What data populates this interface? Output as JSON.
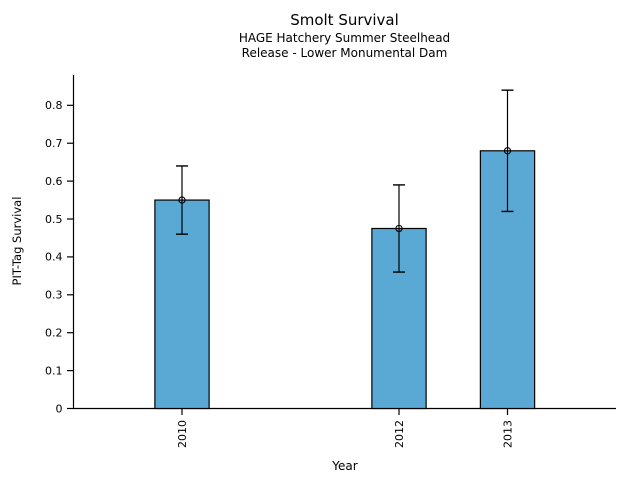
{
  "chart_data": {
    "type": "bar",
    "title": "Smolt Survival",
    "subtitle1": "HAGE Hatchery Summer Steelhead",
    "subtitle2": "Release - Lower Monumental Dam",
    "xlabel": "Year",
    "ylabel": "PIT-Tag Survival",
    "x": [
      2010,
      2012,
      2013
    ],
    "xtick_labels": [
      "2010",
      "2012",
      "2013"
    ],
    "values": [
      0.55,
      0.475,
      0.68
    ],
    "error_low": [
      0.46,
      0.36,
      0.52
    ],
    "error_high": [
      0.64,
      0.59,
      0.84
    ],
    "xlim": [
      2009,
      2014
    ],
    "ylim": [
      0,
      0.88
    ],
    "yticks": [
      0,
      0.1,
      0.2,
      0.3,
      0.4,
      0.5,
      0.6,
      0.7,
      0.8
    ],
    "ytick_labels": [
      "0",
      "0.1",
      "0.2",
      "0.3",
      "0.4",
      "0.5",
      "0.6",
      "0.7",
      "0.8"
    ],
    "bar_width_years": 0.5,
    "bar_color": "#5AA9D5",
    "bar_edge_color": "#000000",
    "axis_color": "#000000",
    "grid": false,
    "legend": null,
    "error_bars": true,
    "marker": "open-circle"
  }
}
